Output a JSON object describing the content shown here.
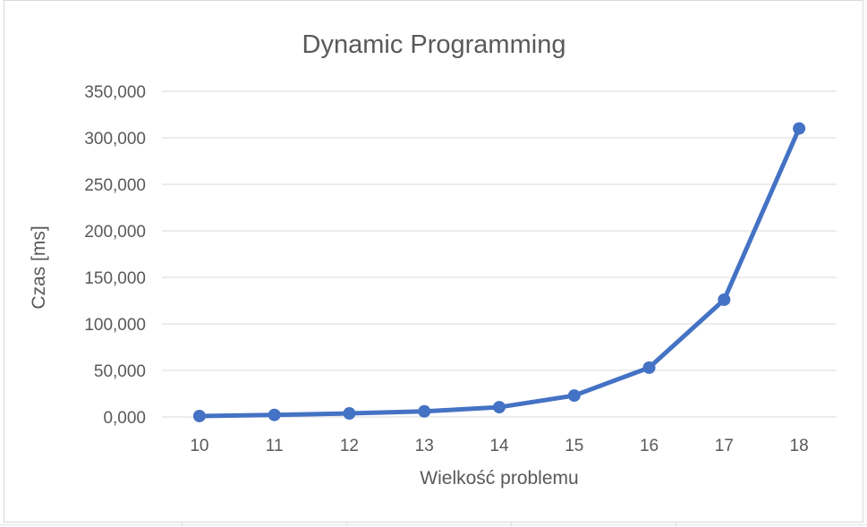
{
  "chart_data": {
    "type": "line",
    "title": "Dynamic Programming",
    "xlabel": "Wielkość problemu",
    "ylabel": "Czas [ms]",
    "categories": [
      "10",
      "11",
      "12",
      "13",
      "14",
      "15",
      "16",
      "17",
      "18"
    ],
    "series": [
      {
        "values": [
          1.0,
          2.2,
          3.8,
          6.0,
          10.5,
          23.0,
          53.0,
          126.0,
          310.0
        ],
        "color": "#4472c4"
      }
    ],
    "ylim": [
      0,
      350
    ],
    "yticks": [
      0,
      50,
      100,
      150,
      200,
      250,
      300,
      350
    ],
    "ytick_labels": [
      "0,000",
      "50,000",
      "100,000",
      "150,000",
      "200,000",
      "250,000",
      "300,000",
      "350,000"
    ],
    "grid": true,
    "legend": "none"
  },
  "colors": {
    "line": "#4472c4",
    "grid": "#d9d9d9",
    "text": "#595959"
  }
}
